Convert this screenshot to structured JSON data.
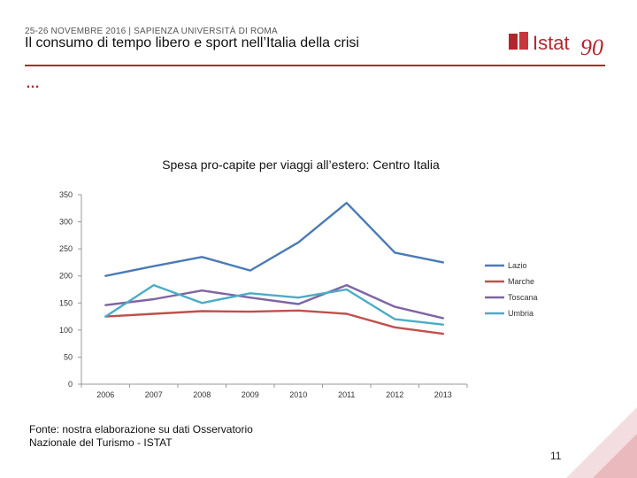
{
  "header": {
    "date_line": "25-26 NOVEMBRE 2016 | SAPIENZA UNIVERSITÀ DI ROMA",
    "title": "Il consumo di tempo libero e sport nell’Italia della crisi",
    "dots": "…",
    "logo_text": "Istat",
    "logo_number": "90"
  },
  "footer": {
    "source_line1": "Fonte: nostra elaborazione su dati Osservatorio",
    "source_line2": "Nazionale del Turismo - ISTAT",
    "page_number": "11"
  },
  "colors": {
    "accent": "#b3262e",
    "lazio": "#4a7bb5",
    "marche": "#c0504d",
    "toscana": "#8064a2",
    "umbria": "#4bacc6"
  },
  "chart_data": {
    "type": "line",
    "title": "Spesa pro-capite per viaggi all’estero: Centro Italia",
    "categories": [
      "2006",
      "2007",
      "2008",
      "2009",
      "2010",
      "2011",
      "2012",
      "2013"
    ],
    "series": [
      {
        "name": "Lazio",
        "color": "#4a7bb5",
        "values": [
          200,
          218,
          235,
          210,
          262,
          335,
          243,
          225
        ]
      },
      {
        "name": "Marche",
        "color": "#c0504d",
        "values": [
          125,
          130,
          135,
          134,
          136,
          130,
          105,
          93
        ]
      },
      {
        "name": "Toscana",
        "color": "#8064a2",
        "values": [
          146,
          157,
          173,
          160,
          148,
          183,
          143,
          122
        ]
      },
      {
        "name": "Umbria",
        "color": "#4bacc6",
        "values": [
          125,
          183,
          150,
          168,
          160,
          175,
          120,
          110
        ]
      }
    ],
    "ylim": [
      0,
      350
    ],
    "yticks": [
      0,
      50,
      100,
      150,
      200,
      250,
      300,
      350
    ],
    "legend_position": "right",
    "grid": false
  }
}
